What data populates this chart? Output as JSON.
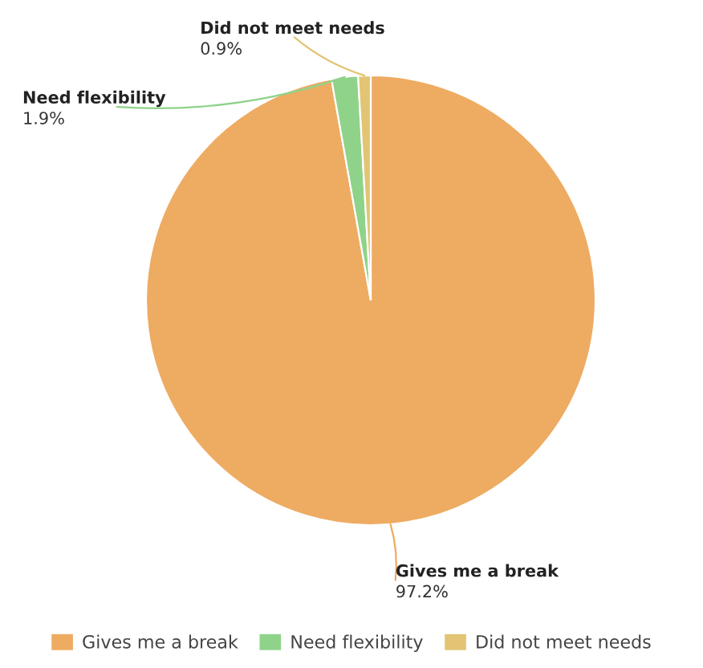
{
  "chart_data": {
    "type": "pie",
    "categories": [
      "Gives me a break",
      "Need flexibility",
      "Did not meet needs"
    ],
    "values": [
      97.2,
      1.9,
      0.9
    ],
    "colors": [
      "#eeab62",
      "#8fd38a",
      "#e2c474"
    ],
    "value_labels": [
      "97.2%",
      "1.9%",
      "0.9%"
    ],
    "legend": "bottom"
  }
}
